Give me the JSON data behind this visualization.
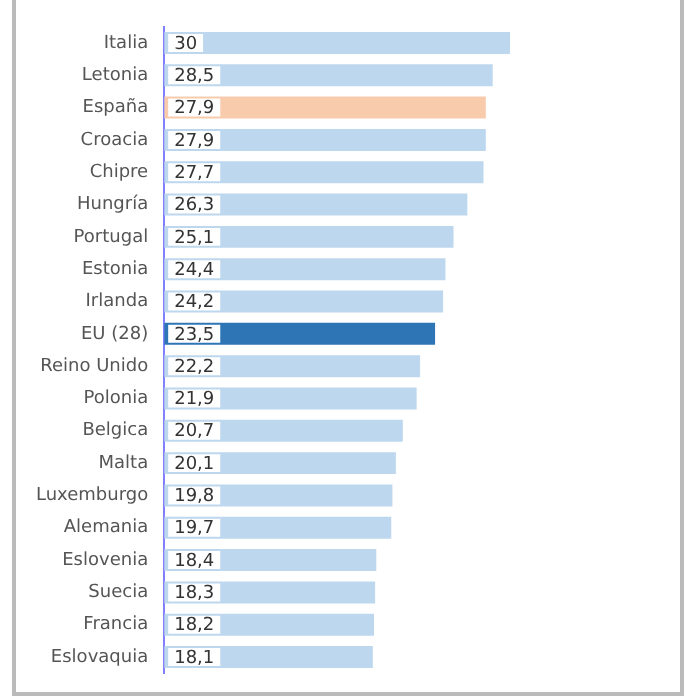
{
  "chart_data": {
    "type": "bar",
    "orientation": "horizontal",
    "tick_labels": "y",
    "categories": [
      "Italia",
      "Letonia",
      "España",
      "Croacia",
      "Chipre",
      "Hungría",
      "Portugal",
      "Estonia",
      "Irlanda",
      "EU (28)",
      "Reino Unido",
      "Polonia",
      "Belgica",
      "Malta",
      "Luxemburgo",
      "Alemania",
      "Eslovenia",
      "Suecia",
      "Francia",
      "Eslovaquia"
    ],
    "values": [
      30,
      28.5,
      27.9,
      27.9,
      27.7,
      26.3,
      25.1,
      24.4,
      24.2,
      23.5,
      22.2,
      21.9,
      20.7,
      20.1,
      19.8,
      19.7,
      18.4,
      18.3,
      18.2,
      18.1
    ],
    "value_labels": [
      "30",
      "28,5",
      "27,9",
      "27,9",
      "27,7",
      "26,3",
      "25,1",
      "24,4",
      "24,2",
      "23,5",
      "22,2",
      "21,9",
      "20,7",
      "20,1",
      "19,8",
      "19,7",
      "18,4",
      "18,3",
      "18,2",
      "18,1"
    ],
    "colors": [
      "#bdd7ee",
      "#bdd7ee",
      "#f8cbad",
      "#bdd7ee",
      "#bdd7ee",
      "#bdd7ee",
      "#bdd7ee",
      "#bdd7ee",
      "#bdd7ee",
      "#2e75b6",
      "#bdd7ee",
      "#bdd7ee",
      "#bdd7ee",
      "#bdd7ee",
      "#bdd7ee",
      "#bdd7ee",
      "#bdd7ee",
      "#bdd7ee",
      "#bdd7ee",
      "#bdd7ee"
    ],
    "grid": false,
    "legend": false
  }
}
